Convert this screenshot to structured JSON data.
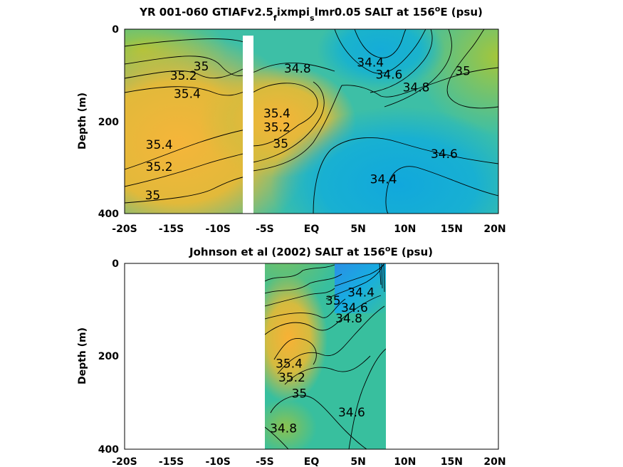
{
  "chart_data": [
    {
      "type": "heatmap",
      "title_parts": [
        "YR 001-060 GTIAFv2.5",
        "f",
        "ixmpi",
        "s",
        "lmr0.05 SALT at 156",
        "o",
        "E (psu)"
      ],
      "ylabel": "Depth (m)",
      "xlabel": "",
      "x_ticks": [
        "-20S",
        "-15S",
        "-10S",
        "-5S",
        "EQ",
        "5N",
        "10N",
        "15N",
        "20N"
      ],
      "y_ticks": [
        "0",
        "200",
        "400"
      ],
      "xlim": [
        -20,
        20
      ],
      "ylim": [
        0,
        400
      ],
      "gap_x": [
        -6.7,
        -5.5
      ],
      "contour_labels": [
        {
          "text": "35",
          "x": -11.8,
          "y": 80
        },
        {
          "text": "35.2",
          "x": -13.7,
          "y": 100
        },
        {
          "text": "35.4",
          "x": -13.3,
          "y": 140
        },
        {
          "text": "34.8",
          "x": -1.5,
          "y": 85
        },
        {
          "text": "34.4",
          "x": 6.3,
          "y": 72
        },
        {
          "text": "34.6",
          "x": 8.3,
          "y": 98
        },
        {
          "text": "34.8",
          "x": 11.2,
          "y": 126
        },
        {
          "text": "35",
          "x": 16.2,
          "y": 90
        },
        {
          "text": "35.4",
          "x": -3.7,
          "y": 182
        },
        {
          "text": "35.2",
          "x": -3.7,
          "y": 212
        },
        {
          "text": "35",
          "x": -3.3,
          "y": 248
        },
        {
          "text": "35.4",
          "x": -16.3,
          "y": 250
        },
        {
          "text": "35.2",
          "x": -16.3,
          "y": 298
        },
        {
          "text": "35",
          "x": -17.0,
          "y": 360
        },
        {
          "text": "34.6",
          "x": 14.2,
          "y": 270
        },
        {
          "text": "34.4",
          "x": 7.7,
          "y": 325
        }
      ]
    },
    {
      "type": "heatmap",
      "title_parts": [
        "Johnson et al (2002) SALT at 156",
        "o",
        "E (psu)"
      ],
      "ylabel": "Depth (m)",
      "xlabel": "",
      "x_ticks": [
        "-20S",
        "-15S",
        "-10S",
        "-5S",
        "EQ",
        "5N",
        "10N",
        "15N",
        "20N"
      ],
      "y_ticks": [
        "0",
        "200",
        "400"
      ],
      "xlim": [
        -20,
        20
      ],
      "ylim": [
        0,
        400
      ],
      "data_extent_x": [
        -5,
        8
      ],
      "contour_labels": [
        {
          "text": "34.4",
          "x": 5.3,
          "y": 62
        },
        {
          "text": "34.6",
          "x": 4.6,
          "y": 95
        },
        {
          "text": "34.8",
          "x": 4.0,
          "y": 118
        },
        {
          "text": "35",
          "x": 2.3,
          "y": 80
        },
        {
          "text": "35.4",
          "x": -2.4,
          "y": 215
        },
        {
          "text": "35.2",
          "x": -2.1,
          "y": 245
        },
        {
          "text": "35",
          "x": -1.3,
          "y": 280
        },
        {
          "text": "34.6",
          "x": 4.3,
          "y": 320
        },
        {
          "text": "34.8",
          "x": -3.0,
          "y": 355
        }
      ]
    }
  ]
}
